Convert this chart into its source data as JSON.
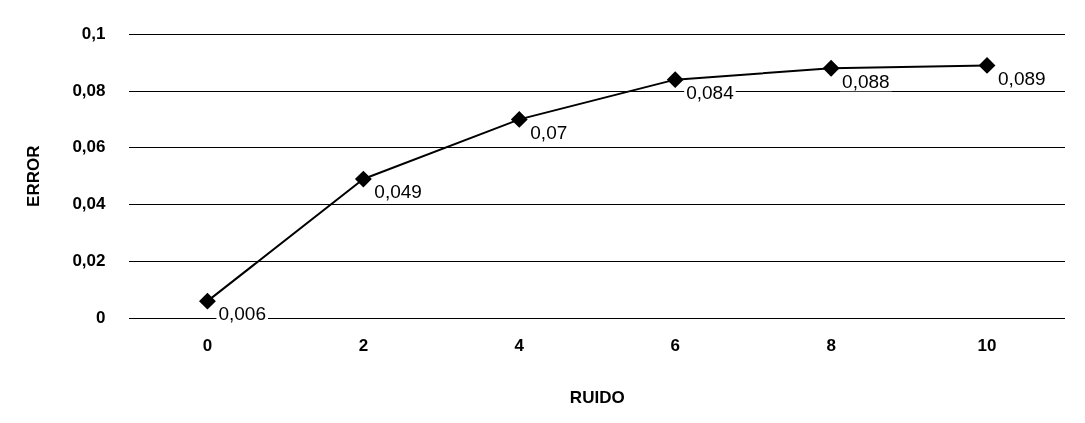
{
  "chart_data": {
    "type": "line",
    "xlabel": "RUIDO",
    "ylabel": "ERROR",
    "categories": [
      "0",
      "2",
      "4",
      "6",
      "8",
      "10"
    ],
    "series": [
      {
        "color": "#000000",
        "values": [
          0.006,
          0.049,
          0.07,
          0.084,
          0.088,
          0.089
        ],
        "value_labels": [
          "0,006",
          "0,049",
          "0,07",
          "0,084",
          "0,088",
          "0,089"
        ]
      }
    ],
    "ylim": [
      0,
      0.1
    ],
    "yticks": [
      {
        "value": 0,
        "label": "0"
      },
      {
        "value": 0.02,
        "label": "0,02"
      },
      {
        "value": 0.04,
        "label": "0,04"
      },
      {
        "value": 0.06,
        "label": "0,06"
      },
      {
        "value": 0.08,
        "label": "0,08"
      },
      {
        "value": 0.1,
        "label": "0,1"
      }
    ],
    "grid": "y",
    "marker": "diamond",
    "line_style": "solid"
  }
}
